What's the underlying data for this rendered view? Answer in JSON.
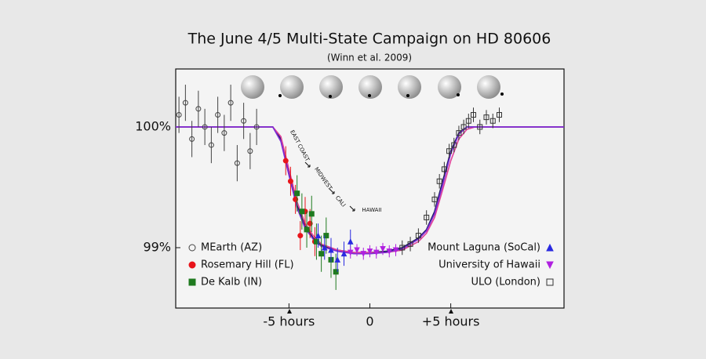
{
  "chart_data": {
    "type": "scatter",
    "title": "The June 4/5 Multi-State Campaign on HD 80606",
    "subtitle": "(Winn et al. 2009)",
    "xlim": [
      -12,
      12
    ],
    "xticks": [
      {
        "value": -5,
        "label": "-5 hours"
      },
      0,
      {
        "value": 5,
        "label": "+5 hours"
      }
    ],
    "ylim": [
      98.5,
      100.48
    ],
    "yticks": [
      {
        "value": 99,
        "label": "99%"
      },
      {
        "value": 100,
        "label": "100%"
      }
    ],
    "annotations": [
      "EAST COAST",
      "MIDWEST",
      "CALI",
      "HAWAII"
    ],
    "series": [
      {
        "type": "line",
        "color": "#1a1a5e",
        "x": [
          -12,
          -6,
          -5.5,
          -5,
          -4.5,
          -4,
          -3.5,
          -3,
          -2,
          -1,
          0,
          1,
          2,
          3,
          3.5,
          4,
          4.5,
          5,
          5.5,
          6,
          6.5,
          12
        ],
        "values": [
          100,
          100,
          99.9,
          99.62,
          99.35,
          99.18,
          99.08,
          99.02,
          98.98,
          98.96,
          98.96,
          98.97,
          99.0,
          99.08,
          99.15,
          99.3,
          99.55,
          99.8,
          99.95,
          100,
          100,
          100
        ]
      },
      {
        "type": "line",
        "color": "#e0409a",
        "x": [
          -12,
          -6,
          -5.5,
          -5,
          -4.5,
          -4,
          -3.5,
          -3,
          -2,
          -1,
          0,
          1,
          2,
          3,
          3.5,
          4,
          4.5,
          5,
          5.5,
          6,
          6.5,
          12
        ],
        "values": [
          100,
          100,
          99.92,
          99.65,
          99.38,
          99.2,
          99.1,
          99.03,
          98.98,
          98.96,
          98.96,
          98.96,
          98.98,
          99.05,
          99.12,
          99.25,
          99.48,
          99.72,
          99.9,
          99.98,
          100,
          100
        ]
      },
      {
        "type": "line",
        "color": "#7b2bd6",
        "x": [
          -12,
          -6,
          -5.5,
          -5,
          -4.5,
          -4,
          -3.5,
          -3,
          -2,
          -1,
          0,
          1,
          2,
          3,
          3.5,
          4,
          4.5,
          5,
          5.5,
          6,
          6.5,
          12
        ],
        "values": [
          100,
          100,
          99.88,
          99.6,
          99.33,
          99.16,
          99.07,
          99.01,
          98.97,
          98.95,
          98.95,
          98.96,
          98.99,
          99.07,
          99.14,
          99.28,
          99.52,
          99.78,
          99.94,
          100,
          100,
          100
        ]
      },
      {
        "type": "scatter",
        "name": "MEarth (AZ)",
        "color": "#444444",
        "marker": "circle-open",
        "legend": "lower left",
        "x": [
          -11.8,
          -11.4,
          -11,
          -10.6,
          -10.2,
          -9.8,
          -9.4,
          -9,
          -8.6,
          -8.2,
          -7.8,
          -7.4,
          -7
        ],
        "values": [
          100.1,
          100.2,
          99.9,
          100.15,
          100.0,
          99.85,
          100.1,
          99.95,
          100.2,
          99.7,
          100.05,
          99.8,
          100.0
        ],
        "errors": [
          0.15,
          0.15,
          0.15,
          0.15,
          0.15,
          0.15,
          0.15,
          0.15,
          0.15,
          0.15,
          0.15,
          0.15,
          0.15
        ]
      },
      {
        "type": "scatter",
        "name": "Rosemary Hill (FL)",
        "color": "#e8141b",
        "marker": "circle",
        "legend": "lower left",
        "x": [
          -5.2,
          -4.9,
          -4.6,
          -4.3,
          -4.0,
          -3.7,
          -3.4
        ],
        "values": [
          99.72,
          99.55,
          99.4,
          99.1,
          99.3,
          99.2,
          99.05
        ],
        "errors": [
          0.12,
          0.12,
          0.12,
          0.12,
          0.12,
          0.12,
          0.12
        ]
      },
      {
        "type": "scatter",
        "name": "De Kalb (IN)",
        "color": "#1f7a1f",
        "marker": "square",
        "legend": "lower left",
        "x": [
          -4.5,
          -4.2,
          -3.9,
          -3.6,
          -3.3,
          -3.0,
          -2.7,
          -2.4,
          -2.1
        ],
        "values": [
          99.45,
          99.3,
          99.15,
          99.28,
          99.05,
          98.95,
          99.1,
          98.9,
          98.8
        ],
        "errors": [
          0.15,
          0.15,
          0.15,
          0.15,
          0.15,
          0.15,
          0.15,
          0.15,
          0.15
        ]
      },
      {
        "type": "scatter",
        "name": "Mount Laguna (SoCal)",
        "color": "#2a2ae0",
        "marker": "triangle-up",
        "legend": "lower right",
        "x": [
          -3.2,
          -2.8,
          -2.4,
          -2.0,
          -1.6,
          -1.2
        ],
        "values": [
          99.1,
          99.0,
          98.98,
          98.9,
          98.95,
          99.05
        ],
        "errors": [
          0.1,
          0.1,
          0.1,
          0.1,
          0.1,
          0.1
        ]
      },
      {
        "type": "scatter",
        "name": "University of Hawaii",
        "color": "#b020e0",
        "marker": "triangle-down",
        "legend": "lower right",
        "x": [
          -1.2,
          -0.8,
          -0.4,
          0,
          0.4,
          0.8,
          1.2,
          1.6
        ],
        "values": [
          98.96,
          98.98,
          98.95,
          98.97,
          98.96,
          98.99,
          98.97,
          98.98
        ],
        "errors": [
          0.05,
          0.05,
          0.05,
          0.05,
          0.05,
          0.05,
          0.05,
          0.05
        ]
      },
      {
        "type": "scatter",
        "name": "ULO (London)",
        "color": "#333333",
        "marker": "square-open",
        "legend": "lower right",
        "x": [
          2,
          2.5,
          3,
          3.5,
          4,
          4.3,
          4.6,
          4.9,
          5.2,
          5.5,
          5.8,
          6.1,
          6.4,
          6.8,
          7.2,
          7.6,
          8
        ],
        "values": [
          99.0,
          99.03,
          99.1,
          99.25,
          99.4,
          99.55,
          99.65,
          99.8,
          99.85,
          99.95,
          100.0,
          100.05,
          100.1,
          100.0,
          100.08,
          100.05,
          100.1
        ],
        "errors": [
          0.06,
          0.06,
          0.06,
          0.06,
          0.06,
          0.06,
          0.06,
          0.06,
          0.06,
          0.06,
          0.06,
          0.06,
          0.06,
          0.06,
          0.06,
          0.06,
          0.06
        ]
      }
    ]
  }
}
